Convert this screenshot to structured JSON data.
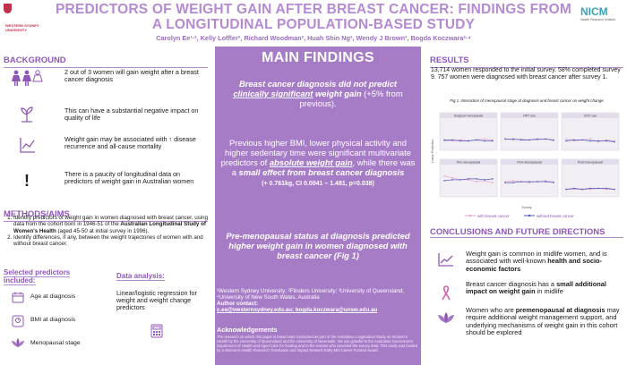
{
  "header": {
    "title": "PREDICTORS OF WEIGHT GAIN AFTER BREAST CANCER: FINDINGS FROM A LONGITUDINAL POPULATION-BASED STUDY",
    "authors": "Carolyn Ee¹·², Kelly Loffler², Richard Woodman², Huah Shin Ng², Wendy J Brown³, Bogda Koczwara²·⁴",
    "logo_left": "WESTERN SYDNEY UNIVERSITY",
    "logo_right": "NICM",
    "logo_right_sub": "Health Research Institute"
  },
  "background": {
    "heading": "BACKGROUND",
    "items": [
      {
        "icon": "women-icon",
        "text": "2 out of 3 women will gain weight after a breast cancer diagnosis"
      },
      {
        "icon": "plant-icon",
        "text": "This can have a substantial negative impact on quality of life"
      },
      {
        "icon": "trend-icon",
        "text": "Weight gain may be associated with ↑ disease recurrence and all-cause mortality"
      },
      {
        "icon": "exclamation-icon",
        "text": "There is a paucity of longitudinal data on predictors of weight gain in Australian women"
      }
    ]
  },
  "aims": {
    "heading": "METHODS/AIMS",
    "item1_a": "Identify predictors of weight gain in women diagnosed with breast cancer, using data from the cohort born in 1946-51 of the ",
    "item1_b": "Australian Longitudinal Study of Women's Health",
    "item1_c": " (aged 45-50 at initial survey in 1996).",
    "item2": "Identify differences, if any, between the weight trajectories of women with and without breast cancer."
  },
  "predictors": {
    "heading": "Selected predictors included:",
    "items": [
      "Age at diagnosis",
      "BMI at diagnosis",
      "Menopausal stage"
    ]
  },
  "data_analysis": {
    "heading": "Data analysis:",
    "text": "Linear/logistic regression for weight and weight change predictors"
  },
  "main": {
    "heading": "MAIN FINDINGS",
    "f1_a": "Breast cancer diagnosis did not predict ",
    "f1_b": "clinically significant",
    "f1_c": " weight gain",
    "f1_d": " (+5% from previous).",
    "f2_a": "Previous higher BMI, lower physical activity and higher sedentary time were significant multivariate predictors of ",
    "f2_b": "absolute weight gain",
    "f2_c": ", while there was a ",
    "f2_d": "small effect from breast cancer diagnosis",
    "f2_e": "(+ 0.761kg, CI 0.0041 – 1.481, p=0.038)",
    "f3": "Pre-menopausal status at diagnosis predicted higher weight gain in women diagnosed with breast cancer (Fig 1)",
    "affiliations": "¹Western Sydney University; ²Flinders University; ³University of Queensland; ⁴University of New South Wales, Australia",
    "contact_label": "Author contact:",
    "contact": "c.ee@westernsydney.edu.au; bogda.koczwara@unsw.edu.au",
    "ack_heading": "Acknowledgements",
    "ack_text": "The research on which this paper is based was conducted as part of the Australian Longitudinal Study on Women's Health by the University of Queensland and the University of Newcastle. We are grateful to the Australian Government Department of Health and Aged Care for funding and to the women who provided the survey data. This study was funded by a Women's Health Research Translation and Impact Network Early-Mid Career Funded Award."
  },
  "results": {
    "heading": "RESULTS",
    "text": "13,714 women responded to the initial survey. 58% completed survey 9. 757 women were diagnosed with breast cancer after survey 1.",
    "fig_caption": "Fig 1. Interaction of menopausal stage at diagnosis and breast cancer on weight change",
    "panels": [
      "Surgical menopause",
      "HRT use",
      "OCP use",
      "Pre-menopausal",
      "Peri-menopausal",
      "Post-menopausal"
    ],
    "ylabel": "Linear Prediction",
    "xlabel": "Survey",
    "legend_with": "with breast cancer",
    "legend_without": "without breast cancer",
    "color_with": "#e4a3cf",
    "color_without": "#4a57b8"
  },
  "conclusions": {
    "heading": "CONCLUSIONS AND FUTURE DIRECTIONS",
    "c1_a": "Weight gain is common in midlife women, and is associated with well-known ",
    "c1_b": "health and socio-economic factors",
    "c2_a": "Breast cancer diagnosis has a ",
    "c2_b": "small additional impact on weight gain",
    "c2_c": " in midlife",
    "c3_a": "Women who are ",
    "c3_b": "premenopausal at diagnosis",
    "c3_c": " may require additional weight management support, and underlying mechanisms of weight gain in this cohort should be explored"
  }
}
